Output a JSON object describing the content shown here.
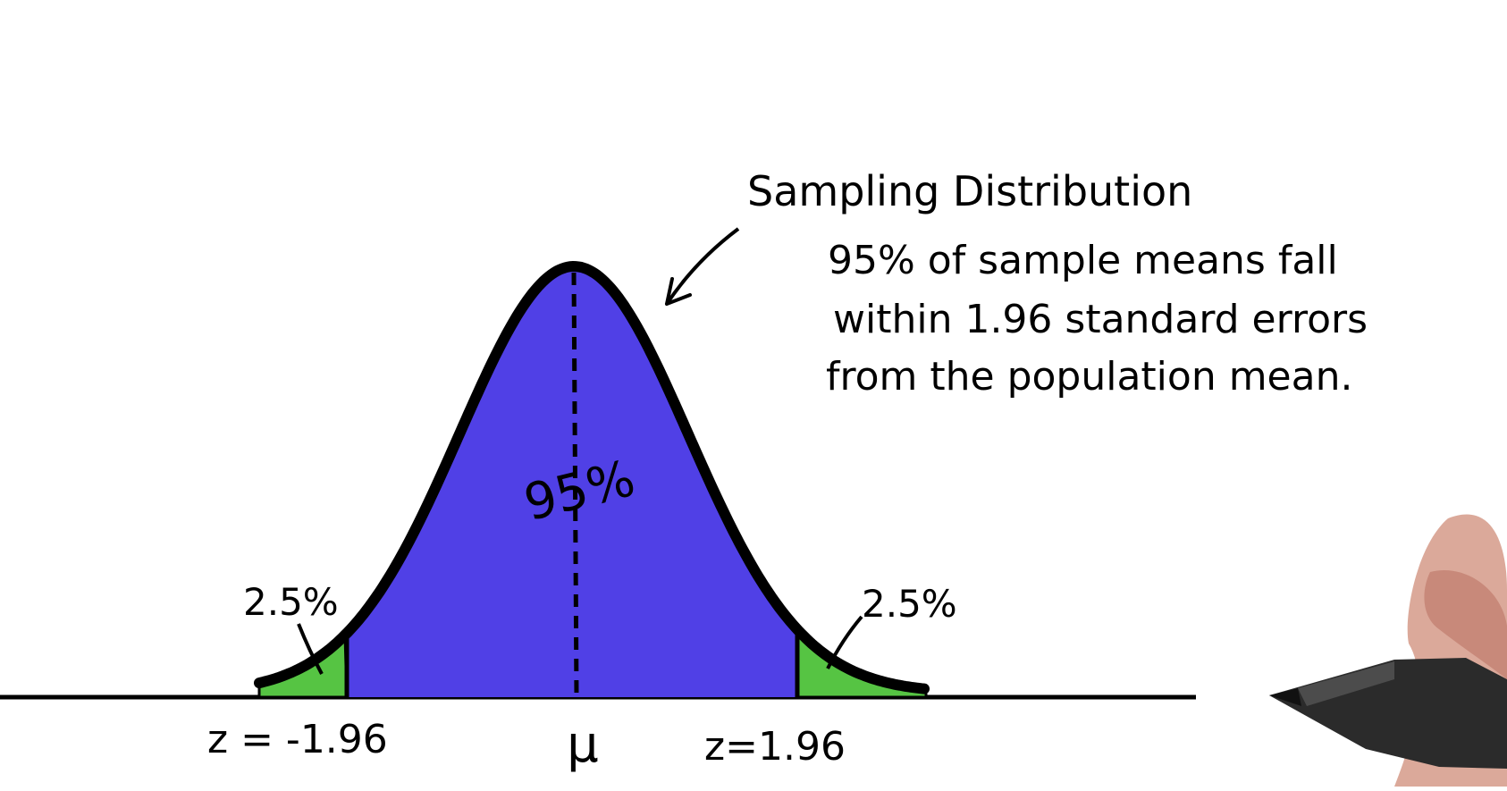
{
  "title": "Sampling Distribution",
  "description_lines": [
    "95% of sample means fall",
    "within 1.96 standard errors",
    "from the population mean."
  ],
  "labels": {
    "center_percent": "95%",
    "left_tail_percent": "2.5%",
    "right_tail_percent": "2.5%",
    "left_z": "z = -1.96",
    "right_z": "z=1.96",
    "mean_symbol": "μ"
  },
  "colors": {
    "center_fill": "#5040E6",
    "tail_fill": "#56C443",
    "outline": "#000000"
  }
}
